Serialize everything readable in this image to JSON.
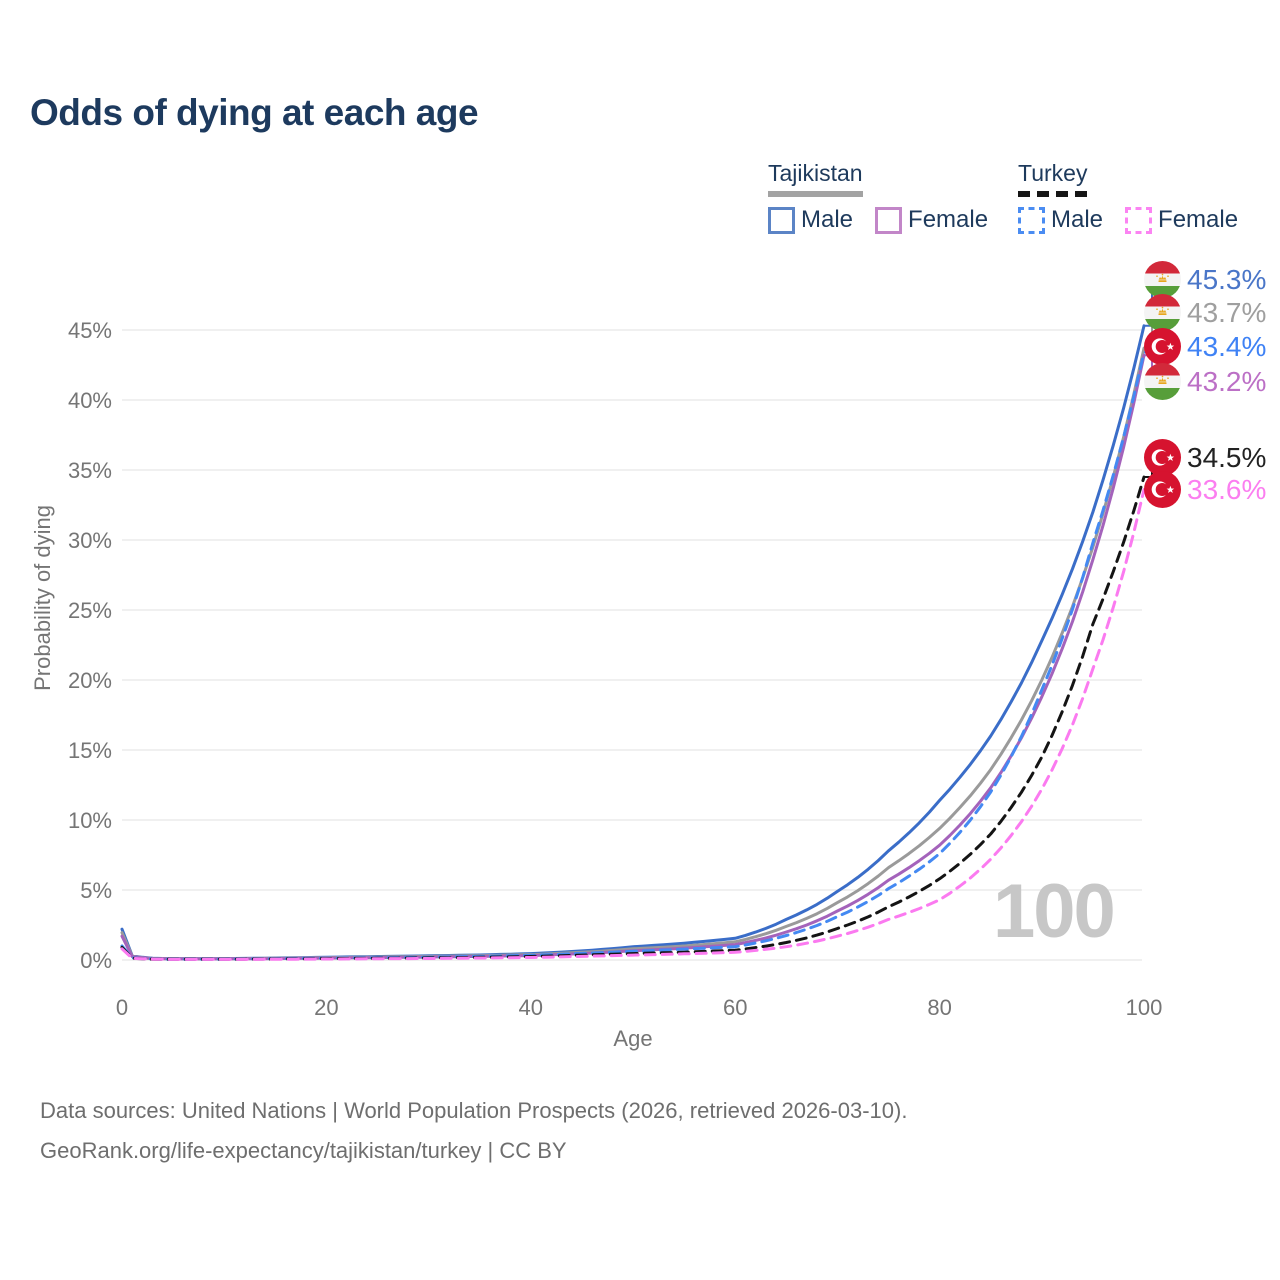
{
  "title": "Odds of dying at each age",
  "legend": {
    "groups": [
      {
        "country": "Tajikistan",
        "line_style": "solid",
        "underline_color": "#a3a3a3",
        "items": [
          {
            "label": "Male",
            "swatch_color": "#5b84c6"
          },
          {
            "label": "Female",
            "swatch_color": "#c286c8"
          }
        ]
      },
      {
        "country": "Turkey",
        "line_style": "dashed",
        "underline_color": "#161616",
        "items": [
          {
            "label": "Male",
            "swatch_color": "#4a8cf2"
          },
          {
            "label": "Female",
            "swatch_color": "#fb84f2"
          }
        ]
      }
    ]
  },
  "watermark": "100",
  "axes": {
    "x": {
      "title": "Age",
      "min": 0,
      "max": 100,
      "tick_labels": [
        "0",
        "20",
        "40",
        "60",
        "80",
        "100"
      ]
    },
    "y": {
      "title": "Probability of dying",
      "min": 0,
      "max": 45,
      "unit": "%",
      "tick_labels": [
        "0%",
        "5%",
        "10%",
        "15%",
        "20%",
        "25%",
        "30%",
        "35%",
        "40%",
        "45%"
      ]
    }
  },
  "colors": {
    "title_text": "#1d3a5e",
    "axis_text": "#757575",
    "gridline": "#ebebeb",
    "watermark": "#c7c7c7",
    "source_text": "#6e6e6e"
  },
  "chart_data": {
    "type": "line",
    "xlabel": "Age",
    "ylabel": "Probability of dying",
    "xlim": [
      0,
      100
    ],
    "ylim": [
      0,
      47
    ],
    "grid": "horizontal",
    "x_ages": [
      0,
      1,
      3,
      5,
      10,
      15,
      20,
      25,
      30,
      35,
      40,
      45,
      50,
      55,
      60,
      65,
      70,
      75,
      80,
      85,
      90,
      95,
      100
    ],
    "series": [
      {
        "name": "Tajikistan Male",
        "style": "solid",
        "color": "#3a6dc8",
        "flag": "tajikistan",
        "end_label": "45.3%",
        "end_value": 45.3,
        "label_color": "#4a76c8",
        "values": [
          2.2,
          0.3,
          0.12,
          0.1,
          0.1,
          0.14,
          0.2,
          0.25,
          0.3,
          0.36,
          0.46,
          0.65,
          0.95,
          1.2,
          1.55,
          2.9,
          4.9,
          7.8,
          11.4,
          16.0,
          22.8,
          32.0,
          45.3
        ]
      },
      {
        "name": "Tajikistan Combined",
        "style": "solid",
        "color": "#9a9a9a",
        "flag": "tajikistan",
        "end_label": "43.7%",
        "end_value": 43.7,
        "label_color": "#9f9f9f",
        "values": [
          1.95,
          0.27,
          0.11,
          0.09,
          0.09,
          0.12,
          0.17,
          0.21,
          0.26,
          0.31,
          0.39,
          0.55,
          0.8,
          1.0,
          1.3,
          2.4,
          4.1,
          6.6,
          9.4,
          13.6,
          20.0,
          29.5,
          43.7
        ]
      },
      {
        "name": "Tajikistan Female",
        "style": "solid",
        "color": "#a463bb",
        "flag": "tajikistan",
        "end_label": "43.2%",
        "end_value": 43.2,
        "label_color": "#bc70c6",
        "values": [
          1.7,
          0.24,
          0.1,
          0.08,
          0.08,
          0.1,
          0.14,
          0.17,
          0.21,
          0.26,
          0.32,
          0.46,
          0.66,
          0.85,
          1.1,
          2.0,
          3.5,
          5.7,
          8.2,
          12.3,
          18.8,
          28.6,
          43.2
        ]
      },
      {
        "name": "Turkey Male",
        "style": "dashed",
        "color": "#4489f2",
        "flag": "turkey",
        "end_label": "43.4%",
        "end_value": 43.4,
        "label_color": "#3f82f5",
        "values": [
          1.0,
          0.15,
          0.07,
          0.05,
          0.06,
          0.09,
          0.13,
          0.16,
          0.2,
          0.26,
          0.34,
          0.47,
          0.62,
          0.78,
          0.95,
          1.75,
          3.1,
          5.1,
          7.6,
          12.0,
          19.3,
          29.8,
          43.4
        ]
      },
      {
        "name": "Turkey Combined",
        "style": "dashed",
        "color": "#141414",
        "flag": "turkey",
        "end_label": "34.5%",
        "end_value": 34.5,
        "label_color": "#222222",
        "values": [
          0.9,
          0.13,
          0.06,
          0.05,
          0.05,
          0.07,
          0.1,
          0.12,
          0.15,
          0.19,
          0.25,
          0.35,
          0.46,
          0.56,
          0.7,
          1.25,
          2.25,
          3.8,
          5.8,
          9.0,
          14.5,
          24.0,
          34.5
        ]
      },
      {
        "name": "Turkey Female",
        "style": "dashed",
        "color": "#fb7af0",
        "flag": "turkey",
        "end_label": "33.6%",
        "end_value": 33.6,
        "label_color": "#fb7ef0",
        "values": [
          0.8,
          0.12,
          0.06,
          0.04,
          0.04,
          0.05,
          0.07,
          0.09,
          0.11,
          0.14,
          0.18,
          0.26,
          0.35,
          0.44,
          0.55,
          0.95,
          1.7,
          2.9,
          4.3,
          7.2,
          12.2,
          20.8,
          33.6
        ]
      }
    ]
  },
  "source": {
    "line1": "Data sources: United Nations | World Population Prospects (2026, retrieved 2026-03-10).",
    "line2": "GeoRank.org/life-expectancy/tajikistan/turkey | CC BY"
  }
}
